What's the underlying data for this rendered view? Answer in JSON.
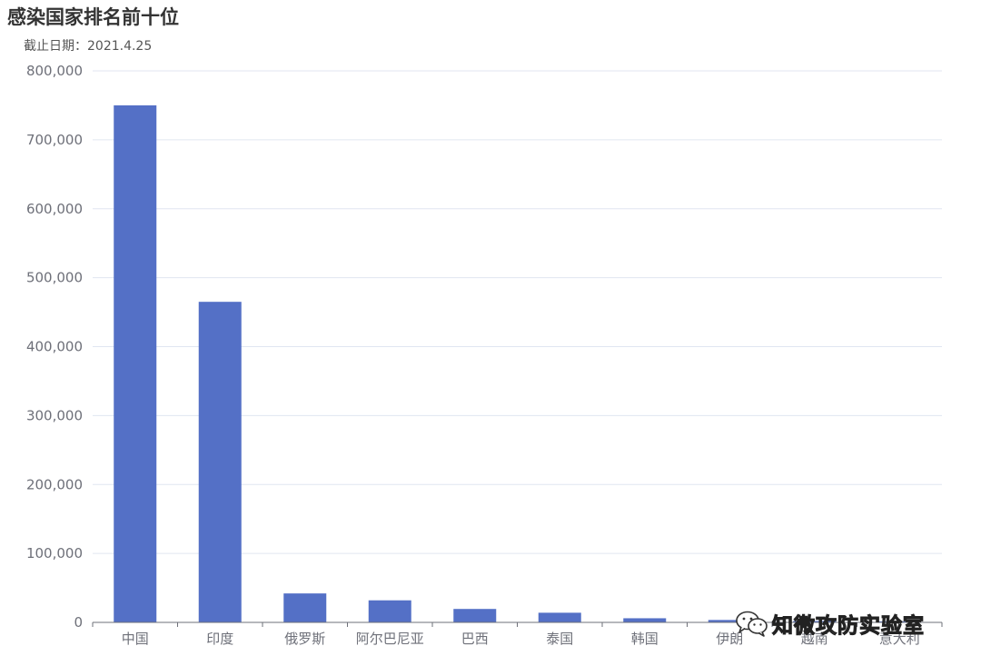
{
  "chart_data": {
    "type": "bar",
    "title": "感染国家排名前十位",
    "subtitle": "截止日期：2021.4.25",
    "categories": [
      "中国",
      "印度",
      "俄罗斯",
      "阿尔巴尼亚",
      "巴西",
      "泰国",
      "韩国",
      "伊朗",
      "越南",
      "意大利"
    ],
    "values": [
      750000,
      465000,
      42000,
      32000,
      19500,
      14000,
      6000,
      3500,
      2000,
      1500
    ],
    "ylim": [
      0,
      800000
    ],
    "yticks": [
      "0",
      "100,000",
      "200,000",
      "300,000",
      "400,000",
      "500,000",
      "600,000",
      "700,000",
      "800,000"
    ],
    "grid": true,
    "bar_color": "#5470c6",
    "grid_color": "#e0e6f1",
    "axis_color": "#6e7079",
    "label_color": "#6e7079"
  },
  "watermark": {
    "text": "知微攻防实验室",
    "icon": "wechat-icon"
  }
}
